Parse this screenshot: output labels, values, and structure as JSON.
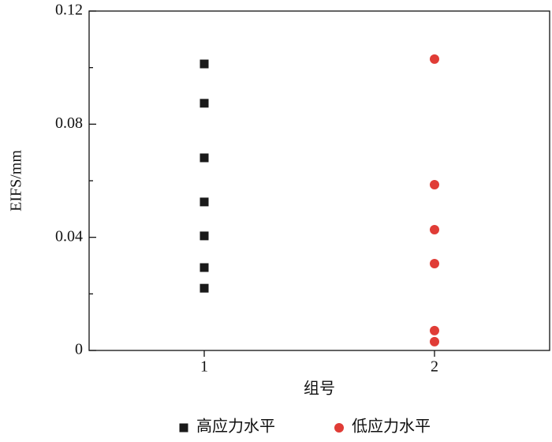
{
  "chart_data": {
    "type": "scatter",
    "x_label": "组号",
    "y_label": "EIFS/mm",
    "xlim": [
      0.5,
      2.5
    ],
    "xticks": [
      1,
      2
    ],
    "ylim": [
      0,
      0.12
    ],
    "yticks": [
      0,
      0.04,
      0.08,
      0.12
    ],
    "y_minor_ticks": [
      0.02,
      0.06,
      0.1
    ],
    "legend": "bottom",
    "series": [
      {
        "name": "高应力水平",
        "color": "#1a1a1a",
        "marker": "square",
        "x": [
          1,
          1,
          1,
          1,
          1,
          1,
          1
        ],
        "values": [
          0.1013,
          0.0874,
          0.0681,
          0.0525,
          0.0405,
          0.0293,
          0.022
        ]
      },
      {
        "name": "低应力水平",
        "color": "#e03c36",
        "marker": "circle",
        "x": [
          2,
          2,
          2,
          2,
          2,
          2
        ],
        "values": [
          0.103,
          0.0586,
          0.0427,
          0.0307,
          0.007,
          0.0031
        ]
      }
    ]
  }
}
